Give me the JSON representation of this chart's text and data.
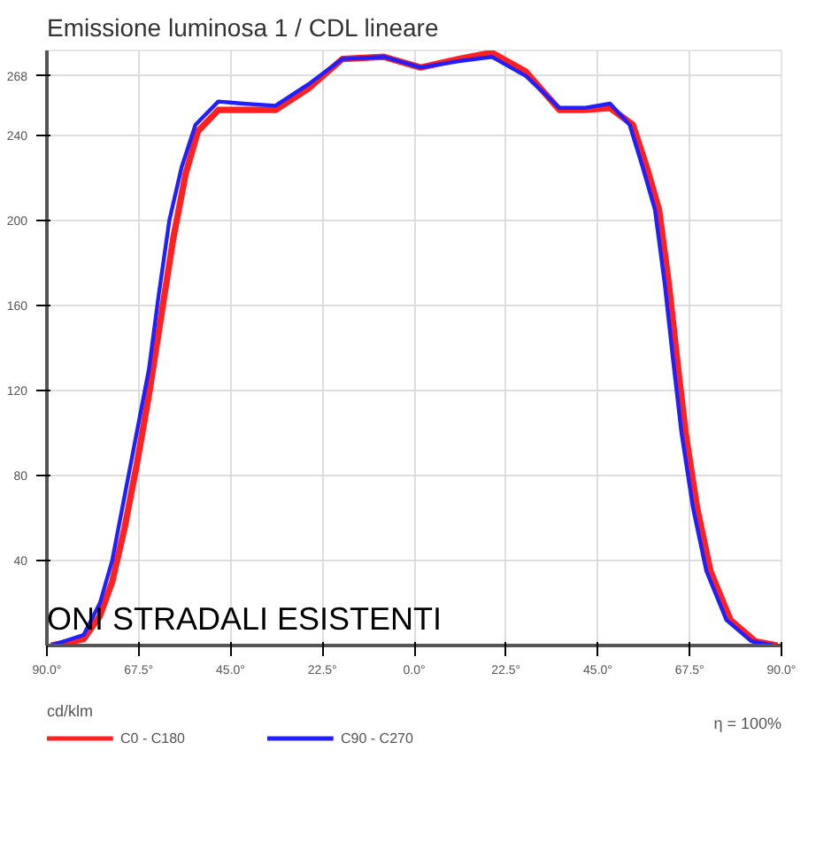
{
  "chart_data": {
    "type": "line",
    "title": "Emissione luminosa 1 / CDL lineare",
    "legend_title": "cd/klm",
    "xlim": [
      -90,
      90
    ],
    "ylim": [
      0,
      280
    ],
    "xticks": [
      {
        "value": -90,
        "label": "90.0°"
      },
      {
        "value": -67.5,
        "label": "67.5°"
      },
      {
        "value": -45,
        "label": "45.0°"
      },
      {
        "value": -22.5,
        "label": "22.5°"
      },
      {
        "value": 0,
        "label": "0.0°"
      },
      {
        "value": 22.5,
        "label": "22.5°"
      },
      {
        "value": 45,
        "label": "45.0°"
      },
      {
        "value": 67.5,
        "label": "67.5°"
      },
      {
        "value": 90,
        "label": "90.0°"
      }
    ],
    "yticks": [
      40,
      80,
      120,
      160,
      200,
      240,
      268
    ],
    "grid": true,
    "legend": "bottom left",
    "annotations": [
      "η = 100%",
      {
        "text": "ONI STRADALI ESISTENTI",
        "x": -90,
        "y": 4
      }
    ],
    "series": [
      {
        "name": "C0 - C180",
        "color": "#ff2020",
        "x": [
          -89,
          -81,
          -77,
          -74,
          -71,
          -68,
          -65,
          -62,
          -59,
          -56,
          -53,
          -48,
          -42,
          -34,
          -26,
          -17.6,
          -7.4,
          1.6,
          11,
          19,
          27.4,
          35.6,
          41.7,
          48,
          53.6,
          57,
          60,
          62.4,
          64.4,
          66.5,
          69.3,
          72.6,
          77.5,
          83.6,
          89
        ],
        "values": [
          0,
          3,
          14,
          30,
          55,
          85,
          118,
          155,
          192,
          222,
          242,
          252,
          252,
          252,
          262,
          276,
          277,
          272,
          276,
          279,
          270,
          252,
          252,
          253,
          245,
          225,
          205,
          170,
          135,
          100,
          65,
          35,
          12,
          2,
          0
        ]
      },
      {
        "name": "C90 - C270",
        "color": "#2020ff",
        "x": [
          -89,
          -81,
          -77,
          -74,
          -71,
          -68,
          -65,
          -62.6,
          -60,
          -57,
          -53.6,
          -48,
          -42,
          -34,
          -26,
          -17.6,
          -7.4,
          1.6,
          11,
          19,
          27.4,
          35.6,
          41.7,
          48,
          52.8,
          56,
          59,
          61.4,
          63.4,
          65.5,
          68.3,
          71.6,
          76.5,
          82.6,
          88
        ],
        "values": [
          0,
          5,
          20,
          40,
          70,
          100,
          130,
          165,
          200,
          225,
          245,
          256,
          255,
          254,
          264,
          276,
          277,
          272,
          275,
          277,
          268,
          253,
          253,
          255,
          245,
          225,
          205,
          170,
          135,
          100,
          65,
          35,
          12,
          2,
          0
        ]
      }
    ]
  }
}
